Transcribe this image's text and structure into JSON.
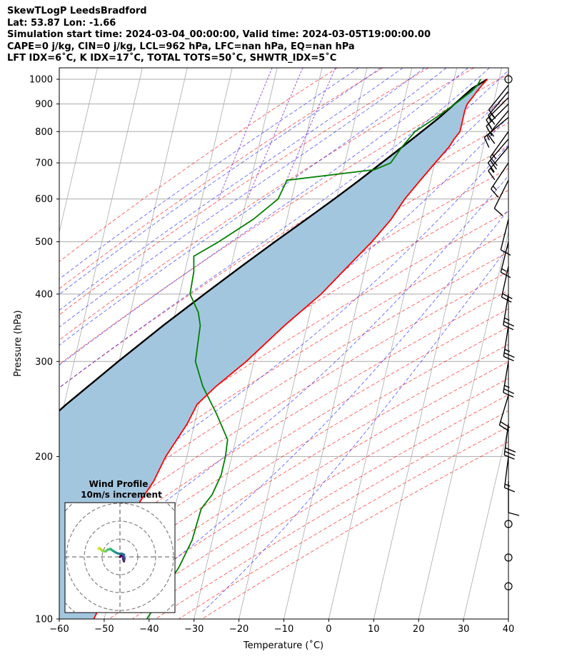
{
  "header": {
    "line1": "SkewTLogP LeedsBradford",
    "line2": "Lat: 53.87   Lon: -1.66",
    "line3": "Simulation start time: 2024-03-04_00:00:00, Valid time: 2024-03-05T19:00:00.00",
    "line4": "CAPE=0 j/kg, CIN=0 j/kg, LCL=962 hPa, LFC=nan hPa, EQ=nan hPa",
    "line5": "LFT IDX=6˚C, K IDX=17˚C, TOTAL TOTS=50˚C, SHWTR_IDX=5˚C"
  },
  "colors": {
    "temperature": "#ff0000",
    "dewpoint": "#008000",
    "parcel": "#000000",
    "cape_fill": "#a3c6df",
    "dry_adiabat": "#ff0000",
    "moist_adiabat": "#0000ff",
    "mixing_ratio": "#8a2be2",
    "isotherm": "#aaaaaa",
    "isobar": "#aaaaaa"
  },
  "chart_data": {
    "type": "skewt",
    "title": "SkewTLogP LeedsBradford",
    "xlabel": "Temperature (˚C)",
    "ylabel": "Pressure (hPa)",
    "xlim": [
      -60,
      40
    ],
    "ylim": [
      1050,
      100
    ],
    "x_ticks": [
      -60,
      -50,
      -40,
      -30,
      -20,
      -10,
      0,
      10,
      20,
      30,
      40
    ],
    "y_ticks": [
      1000,
      900,
      800,
      700,
      600,
      500,
      400,
      300,
      200,
      100
    ],
    "temperature": [
      {
        "p": 1000,
        "t": 7.4
      },
      {
        "p": 975,
        "t": 6.5
      },
      {
        "p": 950,
        "t": 5.7
      },
      {
        "p": 925,
        "t": 5.0
      },
      {
        "p": 900,
        "t": 4.2
      },
      {
        "p": 875,
        "t": 4.0
      },
      {
        "p": 850,
        "t": 4.0
      },
      {
        "p": 800,
        "t": 4.0
      },
      {
        "p": 775,
        "t": 3.1
      },
      {
        "p": 750,
        "t": 2.4
      },
      {
        "p": 700,
        "t": 0.1
      },
      {
        "p": 650,
        "t": -2.3
      },
      {
        "p": 600,
        "t": -4.8
      },
      {
        "p": 550,
        "t": -6.8
      },
      {
        "p": 500,
        "t": -9.9
      },
      {
        "p": 450,
        "t": -14.0
      },
      {
        "p": 400,
        "t": -18.5
      },
      {
        "p": 350,
        "t": -25.0
      },
      {
        "p": 300,
        "t": -31.7
      },
      {
        "p": 270,
        "t": -37.1
      },
      {
        "p": 250,
        "t": -40.4
      },
      {
        "p": 230,
        "t": -41.6
      },
      {
        "p": 200,
        "t": -44.7
      },
      {
        "p": 180,
        "t": -46.1
      },
      {
        "p": 165,
        "t": -48.1
      },
      {
        "p": 150,
        "t": -49.0
      },
      {
        "p": 140,
        "t": -49.5
      },
      {
        "p": 125,
        "t": -49.4
      },
      {
        "p": 115,
        "t": -50.6
      },
      {
        "p": 100,
        "t": -52.3
      }
    ],
    "dewpoint": [
      {
        "p": 1000,
        "t": 5.9
      },
      {
        "p": 975,
        "t": 5.5
      },
      {
        "p": 950,
        "t": 4.5
      },
      {
        "p": 925,
        "t": 3.0
      },
      {
        "p": 900,
        "t": 1.5
      },
      {
        "p": 850,
        "t": -2.0
      },
      {
        "p": 800,
        "t": -6.0
      },
      {
        "p": 750,
        "t": -8.1
      },
      {
        "p": 700,
        "t": -9.8
      },
      {
        "p": 680,
        "t": -13.0
      },
      {
        "p": 650,
        "t": -32.0
      },
      {
        "p": 600,
        "t": -33.0
      },
      {
        "p": 550,
        "t": -37.5
      },
      {
        "p": 500,
        "t": -44.0
      },
      {
        "p": 470,
        "t": -48.8
      },
      {
        "p": 440,
        "t": -48.0
      },
      {
        "p": 400,
        "t": -47.7
      },
      {
        "p": 370,
        "t": -44.9
      },
      {
        "p": 350,
        "t": -43.8
      },
      {
        "p": 300,
        "t": -43.0
      },
      {
        "p": 270,
        "t": -40.1
      },
      {
        "p": 240,
        "t": -35.6
      },
      {
        "p": 215,
        "t": -31.8
      },
      {
        "p": 200,
        "t": -31.4
      },
      {
        "p": 185,
        "t": -31.4
      },
      {
        "p": 170,
        "t": -32.4
      },
      {
        "p": 160,
        "t": -34.1
      },
      {
        "p": 140,
        "t": -34.5
      },
      {
        "p": 125,
        "t": -36.0
      },
      {
        "p": 100,
        "t": -40.5
      }
    ],
    "parcel": [
      {
        "p": 1000,
        "t": 7.4
      },
      {
        "p": 962,
        "t": 4.5
      },
      {
        "p": 900,
        "t": 1.4
      },
      {
        "p": 850,
        "t": -1.3
      },
      {
        "p": 800,
        "t": -4.5
      },
      {
        "p": 750,
        "t": -8.0
      },
      {
        "p": 700,
        "t": -11.8
      },
      {
        "p": 650,
        "t": -15.9
      },
      {
        "p": 600,
        "t": -20.5
      },
      {
        "p": 550,
        "t": -25.7
      },
      {
        "p": 500,
        "t": -31.5
      },
      {
        "p": 450,
        "t": -37.7
      },
      {
        "p": 400,
        "t": -44.5
      },
      {
        "p": 350,
        "t": -52.0
      },
      {
        "p": 300,
        "t": -60.2
      },
      {
        "p": 250,
        "t": -69.5
      },
      {
        "p": 200,
        "t": -80.0
      },
      {
        "p": 150,
        "t": -93.0
      },
      {
        "p": 100,
        "t": -110.5
      }
    ],
    "wind_barbs": [
      {
        "p": 1000,
        "u": 0,
        "v": 0,
        "calm": true
      },
      {
        "p": 975,
        "u": 4,
        "v": 5
      },
      {
        "p": 950,
        "u": 5,
        "v": 6
      },
      {
        "p": 925,
        "u": 6,
        "v": 6
      },
      {
        "p": 900,
        "u": 6,
        "v": 6
      },
      {
        "p": 875,
        "u": 5,
        "v": 6
      },
      {
        "p": 850,
        "u": 6,
        "v": 5
      },
      {
        "p": 800,
        "u": 5,
        "v": 7
      },
      {
        "p": 775,
        "u": 6,
        "v": 7
      },
      {
        "p": 750,
        "u": 5,
        "v": 6
      },
      {
        "p": 700,
        "u": 4,
        "v": 6
      },
      {
        "p": 650,
        "u": 2,
        "v": 4
      },
      {
        "p": 550,
        "u": 1,
        "v": 4
      },
      {
        "p": 500,
        "u": 2,
        "v": 8
      },
      {
        "p": 450,
        "u": 2,
        "v": 9
      },
      {
        "p": 400,
        "u": 2,
        "v": 12
      },
      {
        "p": 350,
        "u": 2,
        "v": 13
      },
      {
        "p": 300,
        "u": 2,
        "v": 12
      },
      {
        "p": 260,
        "u": 3,
        "v": 10
      },
      {
        "p": 230,
        "u": 2,
        "v": 15
      },
      {
        "p": 200,
        "u": 1,
        "v": 8
      },
      {
        "p": 180,
        "u": 0,
        "v": 5
      },
      {
        "p": 150,
        "u": 0,
        "v": 0,
        "calm": true
      },
      {
        "p": 130,
        "u": 0,
        "v": 0,
        "calm": true
      },
      {
        "p": 115,
        "u": 0,
        "v": 0,
        "calm": true
      }
    ],
    "hodograph": {
      "title": "Wind Profile",
      "subtitle": "10m/s increment",
      "ring_step": 10,
      "rings": 3,
      "points": [
        {
          "u": 0.0,
          "v": 0.0
        },
        {
          "u": 1.5,
          "v": 1.5
        },
        {
          "u": 1.8,
          "v": -1.0
        },
        {
          "u": 2.2,
          "v": -2.5
        },
        {
          "u": 2.5,
          "v": -1.0
        },
        {
          "u": 2.0,
          "v": 0.0
        },
        {
          "u": 2.3,
          "v": 1.2
        },
        {
          "u": 1.0,
          "v": 1.8
        },
        {
          "u": -0.8,
          "v": 1.8
        },
        {
          "u": -2.5,
          "v": 2.5
        },
        {
          "u": -4.0,
          "v": 3.5
        },
        {
          "u": -5.5,
          "v": 4.5
        },
        {
          "u": -7.0,
          "v": 4.0
        },
        {
          "u": -8.0,
          "v": 3.0
        },
        {
          "u": -10.0,
          "v": 3.5
        },
        {
          "u": -11.5,
          "v": 5.0
        },
        {
          "u": -12.0,
          "v": 4.5
        }
      ]
    }
  }
}
